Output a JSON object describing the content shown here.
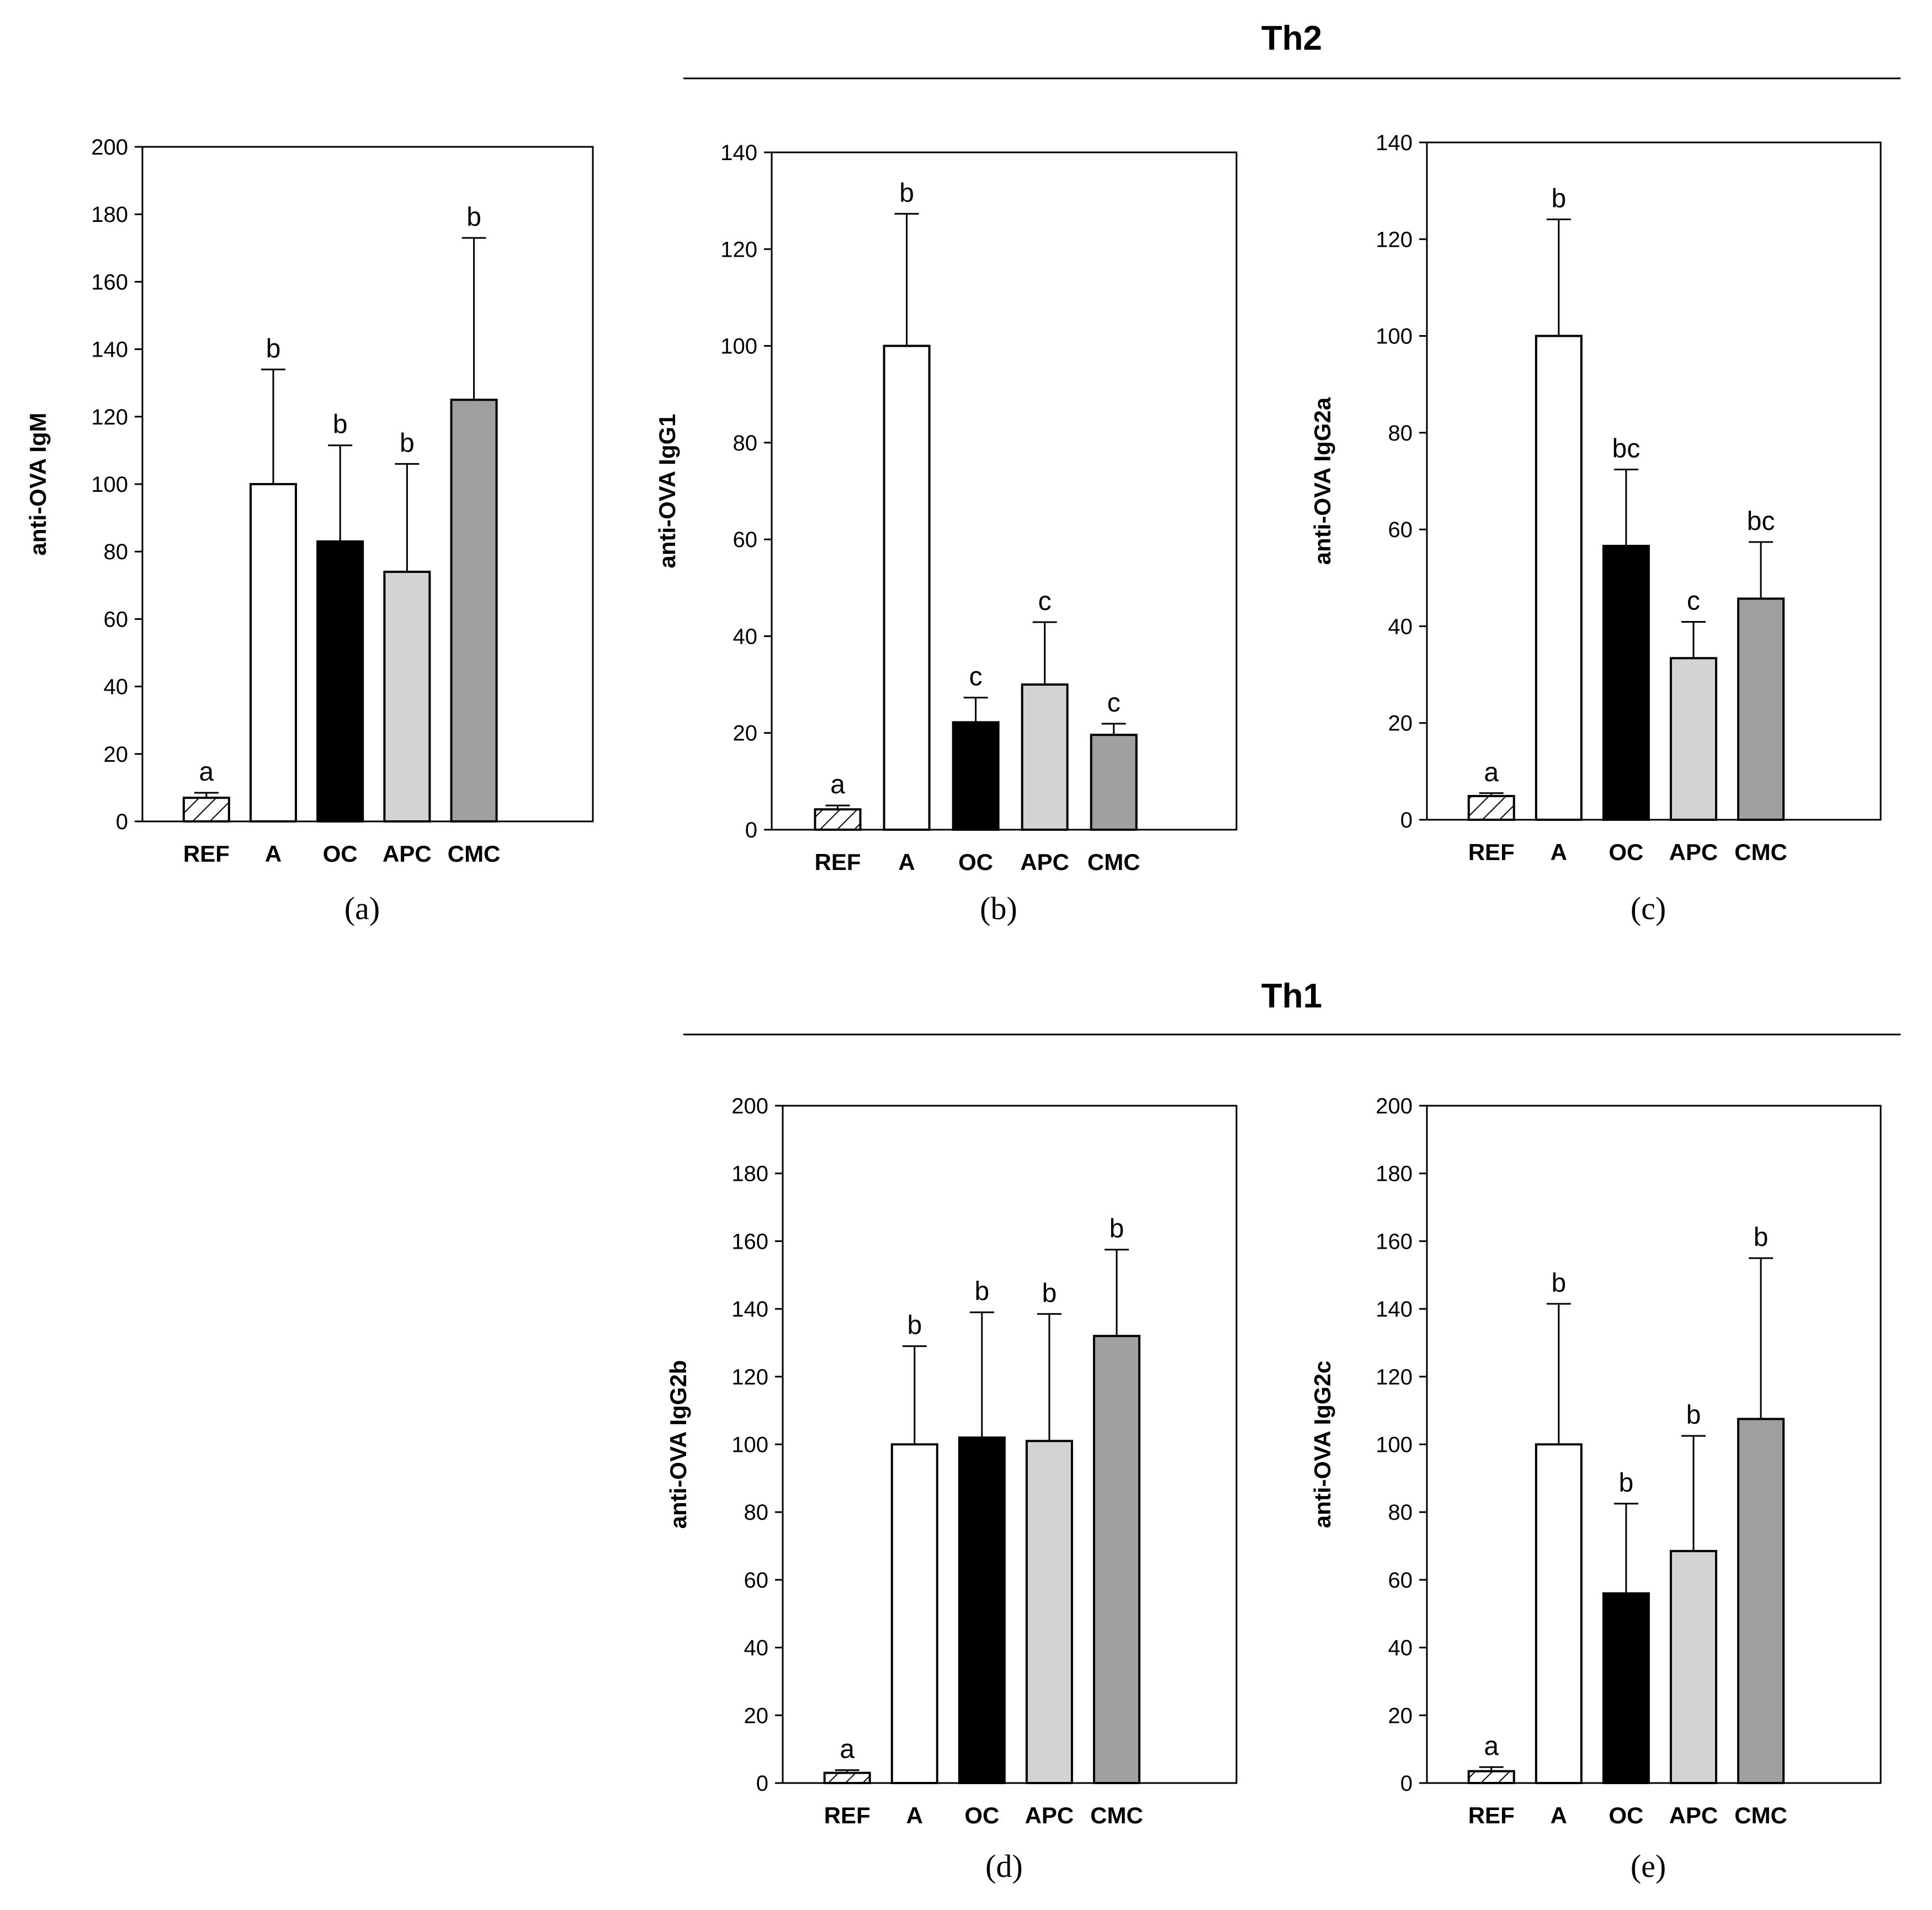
{
  "colors": {
    "REF": "hatch",
    "A": "#ffffff",
    "OC": "#000000",
    "APC": "#d3d3d3",
    "CMC": "#a0a0a0"
  },
  "groups": [
    {
      "id": "th2",
      "label": "Th2"
    },
    {
      "id": "th1",
      "label": "Th1"
    }
  ],
  "chart_data": [
    {
      "id": "a",
      "type": "bar",
      "panel_label": "(a)",
      "ylabel": "anti-OVA IgM",
      "ylim": [
        0,
        200
      ],
      "yticks": [
        0,
        20,
        40,
        60,
        80,
        100,
        120,
        140,
        160,
        180,
        200
      ],
      "categories": [
        "REF",
        "A",
        "OC",
        "APC",
        "CMC"
      ],
      "values": [
        7,
        100,
        83,
        74,
        125
      ],
      "errors": [
        1.5,
        34,
        28.5,
        32,
        48
      ],
      "letters": [
        "a",
        "b",
        "b",
        "b",
        "b"
      ]
    },
    {
      "id": "b",
      "type": "bar",
      "panel_label": "(b)",
      "ylabel": "anti-OVA IgG1",
      "ylim": [
        0,
        140
      ],
      "yticks": [
        0,
        20,
        40,
        60,
        80,
        100,
        120,
        140
      ],
      "categories": [
        "REF",
        "A",
        "OC",
        "APC",
        "CMC"
      ],
      "values": [
        4.2,
        100,
        22.2,
        30,
        19.6
      ],
      "errors": [
        0.8,
        27.3,
        5.1,
        12.9,
        2.3
      ],
      "letters": [
        "a",
        "b",
        "c",
        "c",
        "c"
      ]
    },
    {
      "id": "c",
      "type": "bar",
      "panel_label": "(c)",
      "ylabel": "anti-OVA IgG2a",
      "ylim": [
        0,
        140
      ],
      "yticks": [
        0,
        20,
        40,
        60,
        80,
        100,
        120,
        140
      ],
      "categories": [
        "REF",
        "A",
        "OC",
        "APC",
        "CMC"
      ],
      "values": [
        4.9,
        100,
        56.6,
        33.4,
        45.7
      ],
      "errors": [
        0.6,
        24.1,
        15.8,
        7.5,
        11.7
      ],
      "letters": [
        "a",
        "b",
        "bc",
        "c",
        "bc"
      ]
    },
    {
      "id": "d",
      "type": "bar",
      "panel_label": "(d)",
      "ylabel": "anti-OVA IgG2b",
      "ylim": [
        0,
        200
      ],
      "yticks": [
        0,
        20,
        40,
        60,
        80,
        100,
        120,
        140,
        160,
        180,
        200
      ],
      "categories": [
        "REF",
        "A",
        "OC",
        "APC",
        "CMC"
      ],
      "values": [
        3,
        100,
        102,
        101,
        132
      ],
      "errors": [
        0.8,
        29,
        37,
        37.5,
        25.5
      ],
      "letters": [
        "a",
        "b",
        "b",
        "b",
        "b"
      ]
    },
    {
      "id": "e",
      "type": "bar",
      "panel_label": "(e)",
      "ylabel": "anti-OVA IgG2c",
      "ylim": [
        0,
        200
      ],
      "yticks": [
        0,
        20,
        40,
        60,
        80,
        100,
        120,
        140,
        160,
        180,
        200
      ],
      "categories": [
        "REF",
        "A",
        "OC",
        "APC",
        "CMC"
      ],
      "values": [
        3.5,
        100,
        56,
        68.5,
        107.5
      ],
      "errors": [
        1.2,
        41.5,
        26.5,
        34,
        47.5
      ],
      "letters": [
        "a",
        "b",
        "b",
        "b",
        "b"
      ]
    }
  ]
}
